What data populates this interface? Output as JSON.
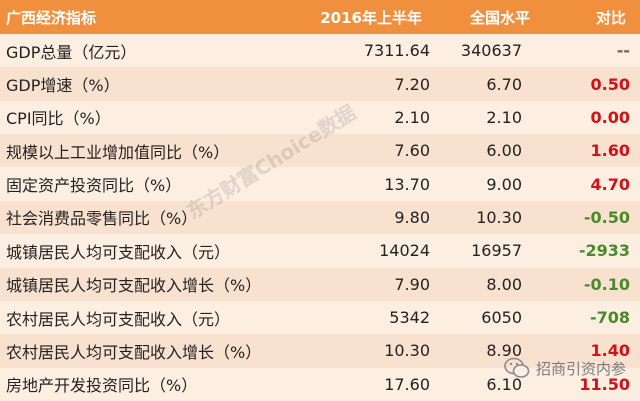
{
  "table": {
    "header": [
      "广西经济指标",
      "2016年上半年",
      "全国水平",
      "对比"
    ],
    "rows": [
      [
        "GDP总量（亿元）",
        "7311.64",
        "340637",
        "--"
      ],
      [
        "GDP增速（%）",
        "7.20",
        "6.70",
        "0.50"
      ],
      [
        "CPI同比（%）",
        "2.10",
        "2.10",
        "0.00"
      ],
      [
        "规模以上工业增加值同比（%）",
        "7.60",
        "6.00",
        "1.60"
      ],
      [
        "固定资产投资同比（%）",
        "13.70",
        "9.00",
        "4.70"
      ],
      [
        "社会消费品零售同比（%）",
        "9.80",
        "10.30",
        "-0.50"
      ],
      [
        "城镇居民人均可支配收入（元）",
        "14024",
        "16957",
        "-2933"
      ],
      [
        "城镇居民人均可支配收入增长（%）",
        "7.90",
        "8.00",
        "-0.10"
      ],
      [
        "农村居民人均可支配收入（元）",
        "5342",
        "6050",
        "-708"
      ],
      [
        "农村居民人均可支配收入增长（%）",
        "10.30",
        "8.90",
        "1.40"
      ],
      [
        "房地产开发投资同比（%）",
        "17.60",
        "6.10",
        "11.50"
      ]
    ]
  },
  "watermark": "东方财富Choice数据",
  "brand": "招商引资内参"
}
